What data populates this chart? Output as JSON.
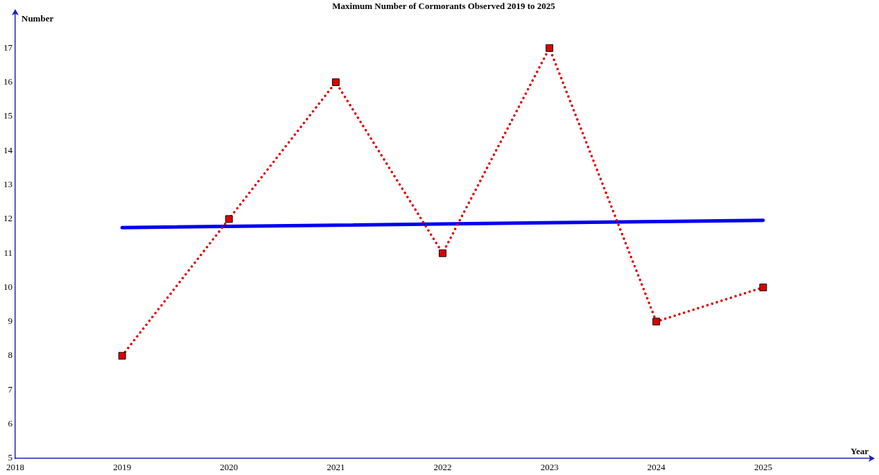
{
  "chart_data": {
    "type": "line",
    "title": "Maximum Number of Cormorants Observed 2019 to 2025",
    "xlabel": "Year",
    "ylabel": "Number",
    "x": [
      2019,
      2020,
      2021,
      2022,
      2023,
      2024,
      2025
    ],
    "series": [
      {
        "color": "#dd0000",
        "marker": "square",
        "line_style": "dotted",
        "values": [
          8,
          12,
          16,
          11,
          17,
          9,
          10
        ]
      },
      {
        "color": "#0000ee",
        "marker": "none",
        "line_style": "solid",
        "x": [
          2019,
          2025
        ],
        "values": [
          11.75,
          11.96
        ]
      }
    ],
    "xlim": [
      2018,
      2026
    ],
    "xticks": [
      2018,
      2019,
      2020,
      2021,
      2022,
      2023,
      2024,
      2025
    ],
    "ylim": [
      5,
      18
    ],
    "yticks": [
      5,
      6,
      7,
      8,
      9,
      10,
      11,
      12,
      13,
      14,
      15,
      16,
      17
    ],
    "grid": false,
    "legend": false
  }
}
